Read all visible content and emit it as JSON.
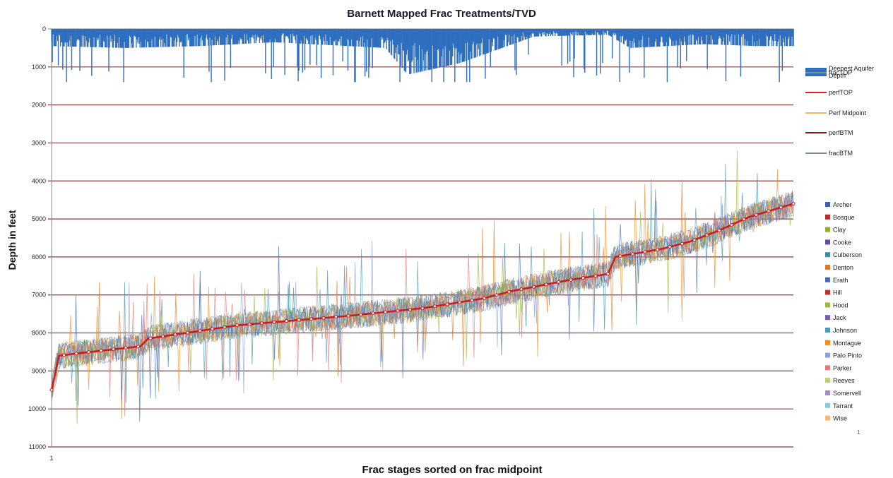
{
  "chart_data": {
    "type": "line",
    "title": "Barnett Mapped Frac Treatments/TVD",
    "xlabel": "Frac stages sorted on frac midpoint",
    "ylabel": "Depth in feet",
    "x_tick_label": "1",
    "y_ticks": [
      0,
      1000,
      2000,
      3000,
      4000,
      5000,
      6000,
      7000,
      8000,
      9000,
      10000,
      11000
    ],
    "ylim": [
      0,
      11000
    ],
    "y_inverted": true,
    "grid": "horizontal",
    "gridline_color": "#8b3a3a",
    "legend_position": "right",
    "footnote": "1",
    "depth_legend": [
      {
        "name": "Deepest Aquifer Depth",
        "color": "#2f6fbf",
        "style": "bar"
      },
      {
        "name": "fracTOP",
        "color": "#7f8c99",
        "style": "line"
      },
      {
        "name": "perfTOP",
        "color": "#d62020",
        "style": "line"
      },
      {
        "name": "Perf Midpoint",
        "color": "#f3b36b",
        "style": "line"
      },
      {
        "name": "perfBTM",
        "color": "#8b1a1a",
        "style": "line"
      },
      {
        "name": "fracBTM",
        "color": "#7f8c99",
        "style": "line"
      }
    ],
    "county_legend": [
      {
        "name": "Archer",
        "color": "#3f5fa8"
      },
      {
        "name": "Bosque",
        "color": "#b52a2a"
      },
      {
        "name": "Clay",
        "color": "#8fae2e"
      },
      {
        "name": "Cooke",
        "color": "#6a4a9a"
      },
      {
        "name": "Culberson",
        "color": "#3a8fa8"
      },
      {
        "name": "Denton",
        "color": "#e07820"
      },
      {
        "name": "Erath",
        "color": "#4a6ab8"
      },
      {
        "name": "Hill",
        "color": "#c23030"
      },
      {
        "name": "Hood",
        "color": "#9ab83a"
      },
      {
        "name": "Jack",
        "color": "#7a5aaa"
      },
      {
        "name": "Johnson",
        "color": "#4a9ab8"
      },
      {
        "name": "Montague",
        "color": "#f08a20"
      },
      {
        "name": "Palo Pinto",
        "color": "#8aa0d8"
      },
      {
        "name": "Parker",
        "color": "#e07a7a"
      },
      {
        "name": "Reeves",
        "color": "#b8d070"
      },
      {
        "name": "Somervell",
        "color": "#a88ac8"
      },
      {
        "name": "Tarrant",
        "color": "#8ac8d8"
      },
      {
        "name": "Wise",
        "color": "#f8b870"
      }
    ],
    "stage_count": 1000,
    "perf_midpoint_profile": {
      "stage_pct": [
        0,
        1,
        3,
        12,
        13,
        25,
        40,
        50,
        58,
        62,
        70,
        75,
        76,
        82,
        86,
        90,
        94,
        100
      ],
      "depth": [
        9500,
        8600,
        8550,
        8350,
        8150,
        7800,
        7550,
        7350,
        7100,
        6900,
        6600,
        6450,
        6000,
        5800,
        5600,
        5300,
        4950,
        4600
      ]
    },
    "aquifer_depth_profile": {
      "stage_pct": [
        0,
        10,
        20,
        30,
        45,
        48,
        55,
        65,
        75,
        78,
        88,
        95,
        100
      ],
      "depth": [
        450,
        500,
        450,
        350,
        500,
        1200,
        900,
        200,
        150,
        500,
        400,
        450,
        450
      ]
    }
  }
}
